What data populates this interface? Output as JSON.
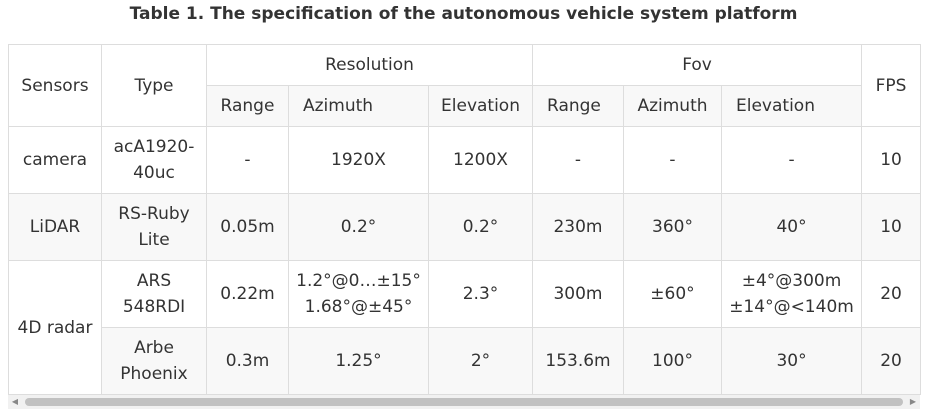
{
  "caption": "Table 1. The specification of the autonomous vehicle system platform",
  "headers": {
    "sensors": "Sensors",
    "type": "Type",
    "resolution": "Resolution",
    "fov": "Fov",
    "fps": "FPS",
    "range": "Range",
    "azimuth": "Azimuth",
    "elevation": "Elevation"
  },
  "rows": [
    {
      "sensor": "camera",
      "type": "acA1920-40uc",
      "res_range": "-",
      "res_azimuth": "1920X",
      "res_elevation": "1200X",
      "fov_range": "-",
      "fov_azimuth": "-",
      "fov_elevation": "-",
      "fps": "10"
    },
    {
      "sensor": "LiDAR",
      "type": "RS-Ruby Lite",
      "res_range": "0.05m",
      "res_azimuth": "0.2°",
      "res_elevation": "0.2°",
      "fov_range": "230m",
      "fov_azimuth": "360°",
      "fov_elevation": "40°",
      "fps": "10"
    },
    {
      "sensor": "4D radar",
      "type": "ARS 548RDI",
      "res_range": "0.22m",
      "res_azimuth": "1.2°@0…±15° 1.68°@±45°",
      "res_elevation": "2.3°",
      "fov_range": "300m",
      "fov_azimuth": "±60°",
      "fov_elevation": "±4°@300m ±14°@<140m",
      "fps": "20"
    },
    {
      "sensor": "",
      "type": "Arbe Phoenix",
      "res_range": "0.3m",
      "res_azimuth": "1.25°",
      "res_elevation": "2°",
      "fov_range": "153.6m",
      "fov_azimuth": "100°",
      "fov_elevation": "30°",
      "fps": "20"
    }
  ],
  "scrollbar": {
    "left_arrow": "◀",
    "right_arrow": "▶"
  }
}
